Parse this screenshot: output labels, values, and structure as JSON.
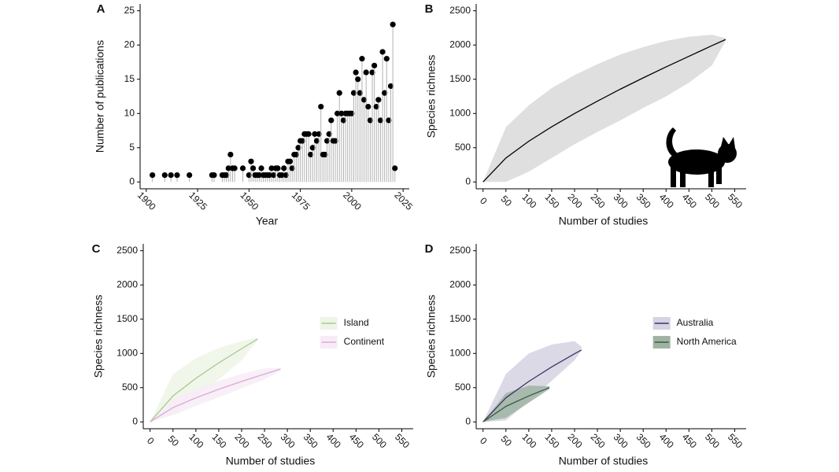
{
  "chart_data": [
    {
      "type": "lollipop",
      "panel_label": "A",
      "x_label": "Year",
      "y_label": "Number of publications",
      "color": "#000000",
      "stem_color": "#b3b3b3",
      "x": [
        1903,
        1909,
        1912,
        1915,
        1921,
        1932,
        1933,
        1937,
        1938,
        1939,
        1940,
        1941,
        1942,
        1943,
        1947,
        1950,
        1951,
        1952,
        1953,
        1954,
        1955,
        1956,
        1957,
        1958,
        1959,
        1960,
        1961,
        1962,
        1963,
        1964,
        1965,
        1966,
        1967,
        1968,
        1969,
        1970,
        1971,
        1972,
        1973,
        1974,
        1975,
        1976,
        1977,
        1978,
        1979,
        1980,
        1981,
        1982,
        1983,
        1984,
        1985,
        1986,
        1987,
        1988,
        1989,
        1990,
        1991,
        1992,
        1993,
        1994,
        1995,
        1996,
        1997,
        1998,
        1999,
        2000,
        2001,
        2002,
        2003,
        2004,
        2005,
        2006,
        2007,
        2008,
        2009,
        2010,
        2011,
        2012,
        2013,
        2014,
        2015,
        2016,
        2017,
        2018,
        2019,
        2020,
        2021
      ],
      "values": [
        1,
        1,
        1,
        1,
        1,
        1,
        1,
        1,
        1,
        1,
        2,
        4,
        2,
        2,
        2,
        1,
        3,
        2,
        1,
        1,
        1,
        2,
        1,
        1,
        1,
        1,
        2,
        1,
        2,
        2,
        1,
        1,
        2,
        1,
        3,
        3,
        2,
        4,
        4,
        5,
        6,
        6,
        7,
        7,
        7,
        4,
        5,
        7,
        6,
        7,
        11,
        4,
        4,
        6,
        7,
        9,
        6,
        6,
        10,
        13,
        10,
        9,
        10,
        10,
        10,
        10,
        13,
        16,
        15,
        13,
        18,
        12,
        16,
        11,
        9,
        16,
        17,
        11,
        12,
        9,
        19,
        13,
        18,
        9,
        14,
        23,
        2
      ],
      "xlim": [
        1897,
        2028
      ],
      "xticks": [
        1900,
        1925,
        1950,
        1975,
        2000,
        2025
      ],
      "ylim": [
        -1,
        26
      ],
      "yticks": [
        0,
        5,
        10,
        15,
        20,
        25
      ]
    },
    {
      "type": "line",
      "panel_label": "B",
      "x_label": "Number of studies",
      "y_label": "Species richness",
      "series": [
        {
          "color": "#000000",
          "fill": "#d9d9d9",
          "x": [
            0,
            50,
            100,
            150,
            200,
            250,
            300,
            350,
            400,
            450,
            500,
            530
          ],
          "values": [
            0,
            350,
            595,
            805,
            1000,
            1180,
            1355,
            1520,
            1680,
            1835,
            1990,
            2080
          ],
          "upper": [
            0,
            800,
            1120,
            1370,
            1560,
            1720,
            1860,
            1970,
            2060,
            2120,
            2150,
            2100
          ],
          "lower": [
            0,
            0,
            150,
            350,
            550,
            730,
            900,
            1080,
            1250,
            1450,
            1700,
            2060
          ]
        }
      ],
      "xlim": [
        -15,
        575
      ],
      "xticks": [
        0,
        50,
        100,
        150,
        200,
        250,
        300,
        350,
        400,
        450,
        500,
        550
      ],
      "ylim": [
        -100,
        2600
      ],
      "yticks": [
        0,
        500,
        1000,
        1500,
        2000,
        2500
      ]
    },
    {
      "type": "line",
      "panel_label": "C",
      "x_label": "Number of studies",
      "y_label": "Species richness",
      "legend": "right",
      "series": [
        {
          "name": "Island",
          "color": "#a9c98f",
          "fill": "#eef4e8",
          "x": [
            0,
            50,
            100,
            150,
            200,
            235
          ],
          "values": [
            0,
            378,
            636,
            862,
            1069,
            1210
          ],
          "upper": [
            0,
            700,
            930,
            1080,
            1180,
            1230
          ],
          "lower": [
            0,
            120,
            370,
            620,
            900,
            1190
          ]
        },
        {
          "name": "Continent",
          "color": "#dba9d8",
          "fill": "#f7ecf6",
          "x": [
            0,
            50,
            100,
            150,
            200,
            250,
            285
          ],
          "values": [
            0,
            209,
            351,
            476,
            591,
            698,
            770
          ],
          "upper": [
            0,
            330,
            480,
            600,
            700,
            780,
            790
          ],
          "lower": [
            0,
            100,
            230,
            360,
            490,
            620,
            750
          ]
        }
      ],
      "xlim": [
        -15,
        575
      ],
      "xticks": [
        0,
        50,
        100,
        150,
        200,
        250,
        300,
        350,
        400,
        450,
        500,
        550
      ],
      "ylim": [
        -100,
        2600
      ],
      "yticks": [
        0,
        500,
        1000,
        1500,
        2000,
        2500
      ]
    },
    {
      "type": "line",
      "panel_label": "D",
      "x_label": "Number of studies",
      "y_label": "Species richness",
      "legend": "right",
      "series": [
        {
          "name": "Australia",
          "color": "#3b3561",
          "fill": "#d6d2e3",
          "x": [
            0,
            50,
            100,
            150,
            200,
            215
          ],
          "values": [
            0,
            352,
            591,
            802,
            995,
            1050
          ],
          "upper": [
            0,
            700,
            1000,
            1130,
            1180,
            1100
          ],
          "lower": [
            0,
            20,
            300,
            600,
            900,
            1040
          ]
        },
        {
          "name": "North America",
          "color": "#3b5a45",
          "fill": "#9fb3a3",
          "x": [
            0,
            50,
            100,
            145
          ],
          "values": [
            0,
            226,
            379,
            500
          ],
          "upper": [
            0,
            420,
            530,
            520
          ],
          "lower": [
            0,
            60,
            280,
            480
          ]
        }
      ],
      "xlim": [
        -15,
        575
      ],
      "xticks": [
        0,
        50,
        100,
        150,
        200,
        250,
        300,
        350,
        400,
        450,
        500,
        550
      ],
      "ylim": [
        -100,
        2600
      ],
      "yticks": [
        0,
        500,
        1000,
        1500,
        2000,
        2500
      ]
    }
  ]
}
